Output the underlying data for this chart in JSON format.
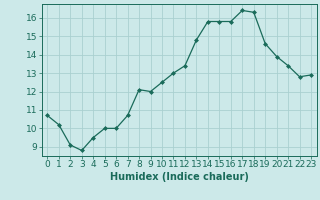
{
  "x": [
    0,
    1,
    2,
    3,
    4,
    5,
    6,
    7,
    8,
    9,
    10,
    11,
    12,
    13,
    14,
    15,
    16,
    17,
    18,
    19,
    20,
    21,
    22,
    23
  ],
  "y": [
    10.7,
    10.2,
    9.1,
    8.8,
    9.5,
    10.0,
    10.0,
    10.7,
    12.1,
    12.0,
    12.5,
    13.0,
    13.4,
    14.8,
    15.8,
    15.8,
    15.8,
    16.4,
    16.3,
    14.6,
    13.9,
    13.4,
    12.8,
    12.9
  ],
  "line_color": "#1a6b5a",
  "marker": "D",
  "marker_size": 2.0,
  "bg_color": "#cce9e9",
  "grid_color": "#aad0d0",
  "xlabel": "Humidex (Indice chaleur)",
  "xlim": [
    -0.5,
    23.5
  ],
  "ylim": [
    8.5,
    16.75
  ],
  "yticks": [
    9,
    10,
    11,
    12,
    13,
    14,
    15,
    16
  ],
  "xticks": [
    0,
    1,
    2,
    3,
    4,
    5,
    6,
    7,
    8,
    9,
    10,
    11,
    12,
    13,
    14,
    15,
    16,
    17,
    18,
    19,
    20,
    21,
    22,
    23
  ],
  "tick_color": "#1a6b5a",
  "label_color": "#1a6b5a",
  "font_size_axis": 7,
  "font_size_ticks": 6.5
}
